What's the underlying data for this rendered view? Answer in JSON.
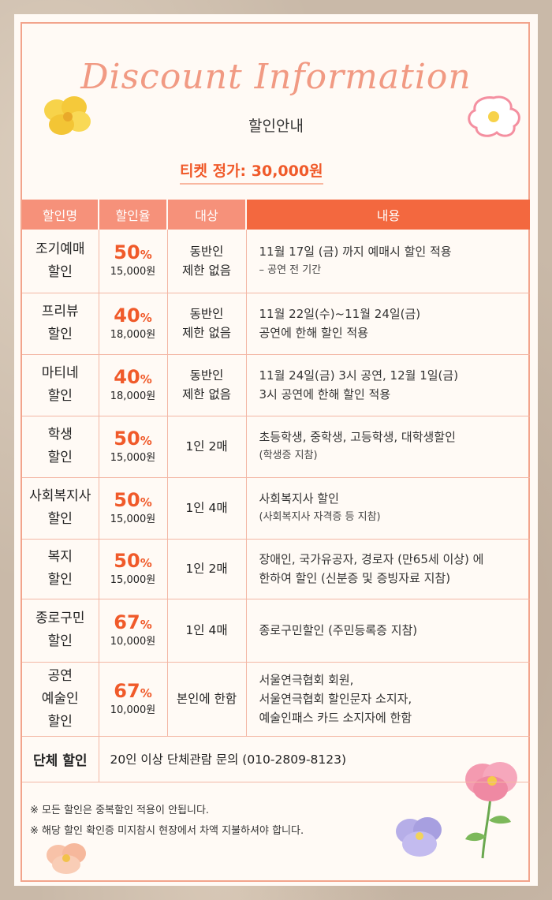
{
  "header": {
    "title": "Discount Information",
    "subtitle": "할인안내",
    "price": "티켓 정가: 30,000원"
  },
  "table": {
    "headers": [
      "할인명",
      "할인율",
      "대상",
      "내용"
    ],
    "rows": [
      {
        "name": [
          "조기예매",
          "할인"
        ],
        "rate": "50",
        "percent": "%",
        "won": "15,000원",
        "target": [
          "동반인",
          "제한 없음"
        ],
        "content": [
          "11월 17일 (금) 까지 예매시 할인 적용"
        ],
        "note": "– 공연 전 기간"
      },
      {
        "name": [
          "프리뷰",
          "할인"
        ],
        "rate": "40",
        "percent": "%",
        "won": "18,000원",
        "target": [
          "동반인",
          "제한 없음"
        ],
        "content": [
          "11월 22일(수)~11월 24일(금)",
          "공연에 한해 할인 적용"
        ],
        "note": ""
      },
      {
        "name": [
          "마티네",
          "할인"
        ],
        "rate": "40",
        "percent": "%",
        "won": "18,000원",
        "target": [
          "동반인",
          "제한 없음"
        ],
        "content": [
          "11월 24일(금) 3시 공연, 12월 1일(금)",
          "3시 공연에 한해 할인 적용"
        ],
        "note": ""
      },
      {
        "name": [
          "학생",
          "할인"
        ],
        "rate": "50",
        "percent": "%",
        "won": "15,000원",
        "target": [
          "1인 2매"
        ],
        "content": [
          "초등학생, 중학생, 고등학생, 대학생할인"
        ],
        "note": "(학생증 지참)"
      },
      {
        "name": [
          "사회복지사",
          "할인"
        ],
        "rate": "50",
        "percent": "%",
        "won": "15,000원",
        "target": [
          "1인 4매"
        ],
        "content": [
          "사회복지사 할인"
        ],
        "note": "(사회복지사 자격증 등 지참)"
      },
      {
        "name": [
          "복지",
          "할인"
        ],
        "rate": "50",
        "percent": "%",
        "won": "15,000원",
        "target": [
          "1인 2매"
        ],
        "content": [
          "장애인, 국가유공자, 경로자 (만65세 이상) 에",
          "한하여 할인 (신분증 및 증빙자료 지참)"
        ],
        "note": ""
      },
      {
        "name": [
          "종로구민",
          "할인"
        ],
        "rate": "67",
        "percent": "%",
        "won": "10,000원",
        "target": [
          "1인 4매"
        ],
        "content": [
          "종로구민할인 (주민등록증 지참)"
        ],
        "note": ""
      },
      {
        "name": [
          "공연",
          "예술인",
          "할인"
        ],
        "rate": "67",
        "percent": "%",
        "won": "10,000원",
        "target": [
          "본인에 한함"
        ],
        "content": [
          "서울연극협회 회원,",
          "서울연극협회 할인문자 소지자,",
          "예술인패스 카드 소지자에 한함"
        ],
        "note": ""
      }
    ],
    "group": {
      "name": "단체 할인",
      "value": "20인 이상 단체관람 문의 (010-2809-8123)"
    }
  },
  "footer": {
    "notes": [
      "※  모든 할인은 중복할인 적용이 안됩니다.",
      "※  해당 할인 확인증 미지참시 현장에서 차액 지불하셔야 합니다."
    ]
  },
  "colors": {
    "accent": "#f05a2a",
    "header_light": "#f6917a",
    "header_dark": "#f3683f",
    "title": "#f19a83"
  },
  "icons": [
    "yellow-flower-icon",
    "pink-flower-icon",
    "pink-peony-icon",
    "purple-flower-icon",
    "peach-flower-icon"
  ]
}
